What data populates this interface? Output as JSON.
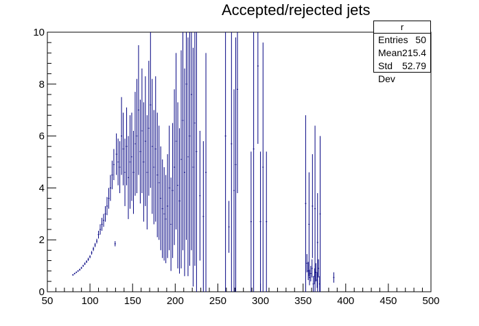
{
  "chart_data": {
    "type": "histogram",
    "title": "Accepted/rejected jets",
    "xlabel": "",
    "ylabel": "",
    "xlim": [
      50,
      500
    ],
    "ylim": [
      0,
      10
    ],
    "x_ticks": [
      "50",
      "100",
      "150",
      "200",
      "250",
      "300",
      "350",
      "400",
      "450",
      "500"
    ],
    "y_ticks": [
      "0",
      "2",
      "4",
      "6",
      "8",
      "10"
    ],
    "grid": false,
    "legend": "none",
    "color": "#000080",
    "stats": {
      "name": "r",
      "rows": [
        {
          "label": "Entries",
          "value": "50"
        },
        {
          "label": "Mean",
          "value": "215.4"
        },
        {
          "label": "Std Dev",
          "value": "52.79"
        }
      ]
    },
    "points": [
      [
        80,
        0.65,
        0.03
      ],
      [
        82,
        0.7,
        0.03
      ],
      [
        84,
        0.75,
        0.03
      ],
      [
        86,
        0.8,
        0.03
      ],
      [
        88,
        0.85,
        0.04
      ],
      [
        90,
        0.92,
        0.04
      ],
      [
        92,
        1.0,
        0.04
      ],
      [
        94,
        1.08,
        0.05
      ],
      [
        96,
        1.16,
        0.05
      ],
      [
        98,
        1.25,
        0.06
      ],
      [
        100,
        1.35,
        0.06
      ],
      [
        102,
        1.5,
        0.07
      ],
      [
        104,
        1.65,
        0.08
      ],
      [
        106,
        1.8,
        0.08
      ],
      [
        108,
        1.95,
        0.09
      ],
      [
        110,
        2.2,
        0.15
      ],
      [
        112,
        2.4,
        0.2
      ],
      [
        114,
        2.6,
        0.25
      ],
      [
        116,
        2.75,
        0.25
      ],
      [
        118,
        3.0,
        0.3
      ],
      [
        120,
        3.3,
        0.35
      ],
      [
        122,
        3.6,
        0.4
      ],
      [
        124,
        4.0,
        0.5
      ],
      [
        126,
        4.5,
        0.55
      ],
      [
        128,
        4.9,
        0.6
      ],
      [
        129.5,
        1.85,
        0.1
      ],
      [
        131,
        5.3,
        0.8
      ],
      [
        133,
        5.0,
        0.9
      ],
      [
        135,
        4.8,
        1.0
      ],
      [
        137,
        6.0,
        1.5
      ],
      [
        139,
        5.5,
        1.4
      ],
      [
        141,
        4.6,
        1.3
      ],
      [
        143,
        5.6,
        1.5
      ],
      [
        145,
        4.4,
        1.6
      ],
      [
        147,
        5.0,
        1.8
      ],
      [
        149,
        5.2,
        1.7
      ],
      [
        151,
        4.6,
        1.6
      ],
      [
        153,
        5.7,
        2.0
      ],
      [
        155,
        6.0,
        2.2
      ],
      [
        157,
        7.0,
        2.5
      ],
      [
        159,
        5.4,
        2.0
      ],
      [
        161,
        6.2,
        2.4
      ],
      [
        163,
        5.0,
        2.3
      ],
      [
        165,
        5.8,
        2.5
      ],
      [
        167,
        4.6,
        2.2
      ],
      [
        169,
        6.3,
        2.6
      ],
      [
        171,
        7.2,
        3.2
      ],
      [
        173,
        5.6,
        2.6
      ],
      [
        175,
        4.8,
        2.2
      ],
      [
        177,
        5.5,
        2.8
      ],
      [
        179,
        4.5,
        2.4
      ],
      [
        181,
        4.2,
        2.2
      ],
      [
        183,
        3.6,
        2.0
      ],
      [
        185,
        3.2,
        1.9
      ],
      [
        187,
        3.0,
        1.8
      ],
      [
        189,
        2.8,
        1.7
      ],
      [
        191,
        3.3,
        2.0
      ],
      [
        193,
        4.0,
        2.4
      ],
      [
        195,
        2.6,
        1.8
      ],
      [
        197,
        3.9,
        2.6
      ],
      [
        199,
        4.8,
        3.0
      ],
      [
        201,
        5.8,
        3.4
      ],
      [
        203,
        4.1,
        3.2
      ],
      [
        205,
        3.5,
        2.8
      ],
      [
        207,
        5.1,
        4.2
      ],
      [
        209,
        6.6,
        5.0
      ],
      [
        211,
        4.6,
        4.0
      ],
      [
        213,
        8.0,
        6.0
      ],
      [
        215,
        5.2,
        4.6
      ],
      [
        217,
        6.0,
        5.0
      ],
      [
        219,
        7.6,
        6.0
      ],
      [
        221,
        4.8,
        4.6
      ],
      [
        223,
        6.5,
        5.5
      ],
      [
        225,
        5.4,
        5.4
      ],
      [
        229,
        3.7,
        2.5
      ],
      [
        233,
        2.9,
        2.9
      ],
      [
        236,
        4.6,
        4.6
      ],
      [
        259,
        6.0,
        6.0
      ],
      [
        263,
        2.5,
        1.0
      ],
      [
        266,
        5.7,
        5.7
      ],
      [
        269,
        3.9,
        3.9
      ],
      [
        271,
        4.9,
        4.9
      ],
      [
        273,
        7.8,
        4.0
      ],
      [
        289,
        2.7,
        2.7
      ],
      [
        292,
        5.5,
        5.5
      ],
      [
        297,
        8.7,
        3.0
      ],
      [
        300,
        2.7,
        2.7
      ],
      [
        303,
        4.8,
        4.8
      ],
      [
        307,
        2.7,
        2.7
      ],
      [
        353,
        3.4,
        3.4
      ],
      [
        354.5,
        1.1,
        0.35
      ],
      [
        356,
        0.8,
        0.35
      ],
      [
        357.5,
        0.55,
        0.3
      ],
      [
        359,
        0.7,
        0.3
      ],
      [
        360.5,
        0.9,
        0.35
      ],
      [
        362,
        0.3,
        0.3
      ],
      [
        363.5,
        0.6,
        0.3
      ],
      [
        365,
        0.75,
        0.35
      ],
      [
        366.5,
        0.45,
        0.3
      ],
      [
        368,
        0.9,
        0.35
      ],
      [
        369.5,
        0.3,
        0.3
      ],
      [
        357,
        2.6,
        2.0
      ],
      [
        361,
        3.3,
        2.0
      ],
      [
        364,
        3.2,
        3.2
      ],
      [
        367,
        1.9,
        1.9
      ],
      [
        370,
        3.0,
        3.0
      ],
      [
        386,
        0.55,
        0.2
      ]
    ]
  }
}
